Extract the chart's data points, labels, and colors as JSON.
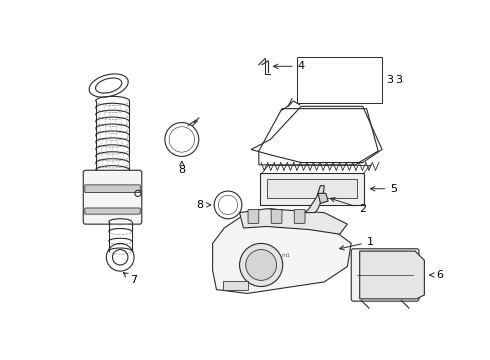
{
  "bg_color": "#ffffff",
  "line_color": "#2a2a2a",
  "fig_width": 4.9,
  "fig_height": 3.6,
  "dpi": 100,
  "lw": 0.8
}
